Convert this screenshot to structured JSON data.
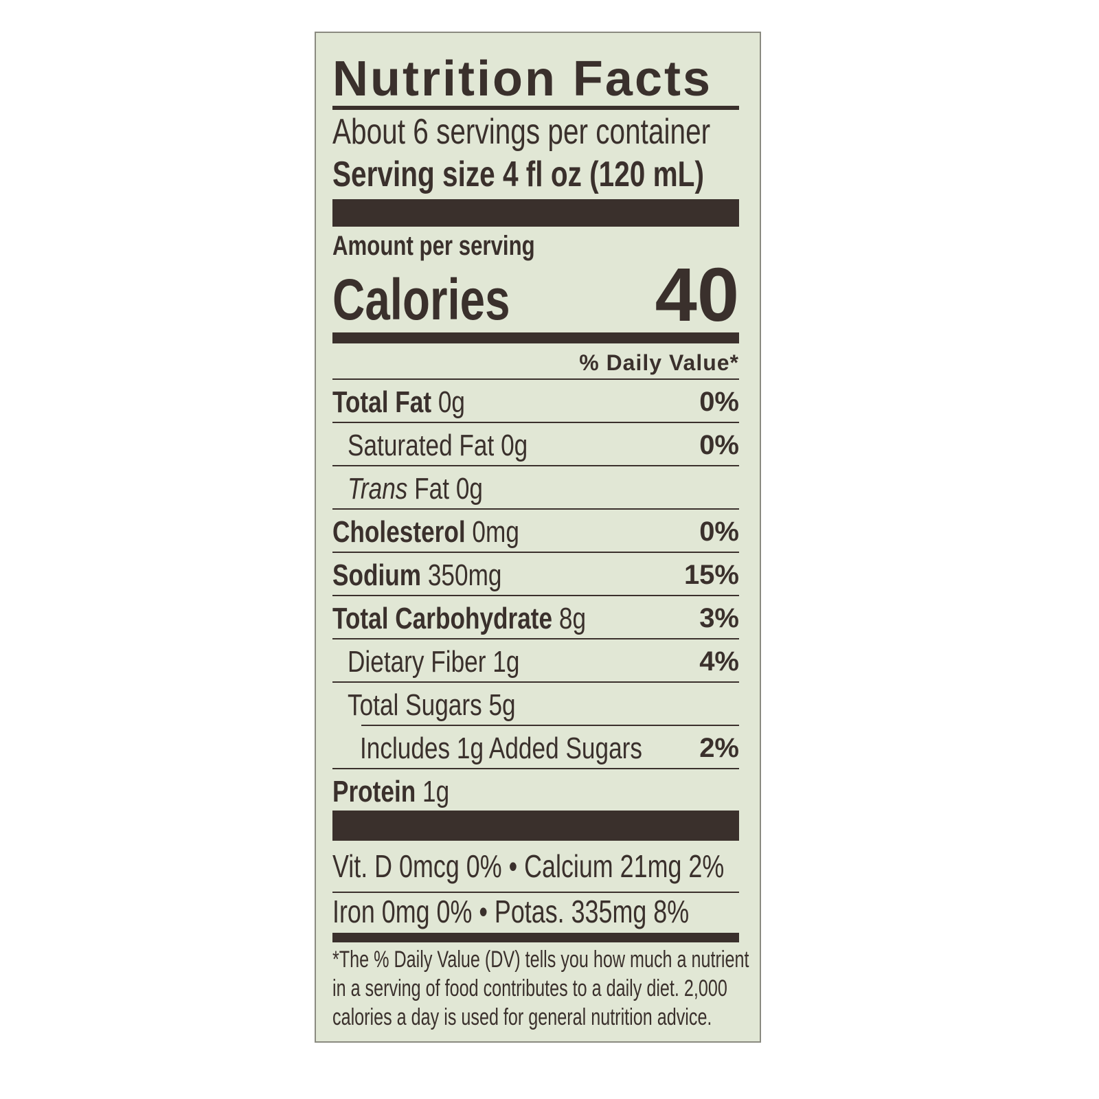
{
  "title": "Nutrition Facts",
  "servings_per_container": "About 6 servings per container",
  "serving_size": "Serving size 4 fl oz (120 mL)",
  "amount_per_serving": "Amount per serving",
  "calories_label": "Calories",
  "calories_value": "40",
  "daily_value_header": "% Daily Value*",
  "nutrients": [
    {
      "name": "Total Fat",
      "amount": "0g",
      "dv": "0%"
    },
    {
      "name": "Saturated Fat",
      "amount": "0g",
      "dv": "0%"
    },
    {
      "name": "Trans",
      "name_suffix": "Fat",
      "amount": "0g",
      "dv": ""
    },
    {
      "name": "Cholesterol",
      "amount": "0mg",
      "dv": "0%"
    },
    {
      "name": "Sodium",
      "amount": "350mg",
      "dv": "15%"
    },
    {
      "name": "Total Carbohydrate",
      "amount": "8g",
      "dv": "3%"
    },
    {
      "name": "Dietary Fiber",
      "amount": "1g",
      "dv": "4%"
    },
    {
      "name": "Total Sugars",
      "amount": "5g",
      "dv": ""
    },
    {
      "name": "Includes 1g Added Sugars",
      "amount": "",
      "dv": "2%"
    },
    {
      "name": "Protein",
      "amount": "1g",
      "dv": ""
    }
  ],
  "vitamins": [
    "Vit. D 0mcg 0%  •  Calcium 21mg 2%",
    "Iron 0mg 0%    •  Potas. 335mg 8%"
  ],
  "footnote": [
    "*The % Daily Value (DV) tells you how much a nutrient",
    "in a serving of food contributes to a daily diet. 2,000",
    "calories a day is used for general nutrition advice."
  ],
  "colors": {
    "background": "#e1e7d5",
    "ink": "#3a302c"
  }
}
